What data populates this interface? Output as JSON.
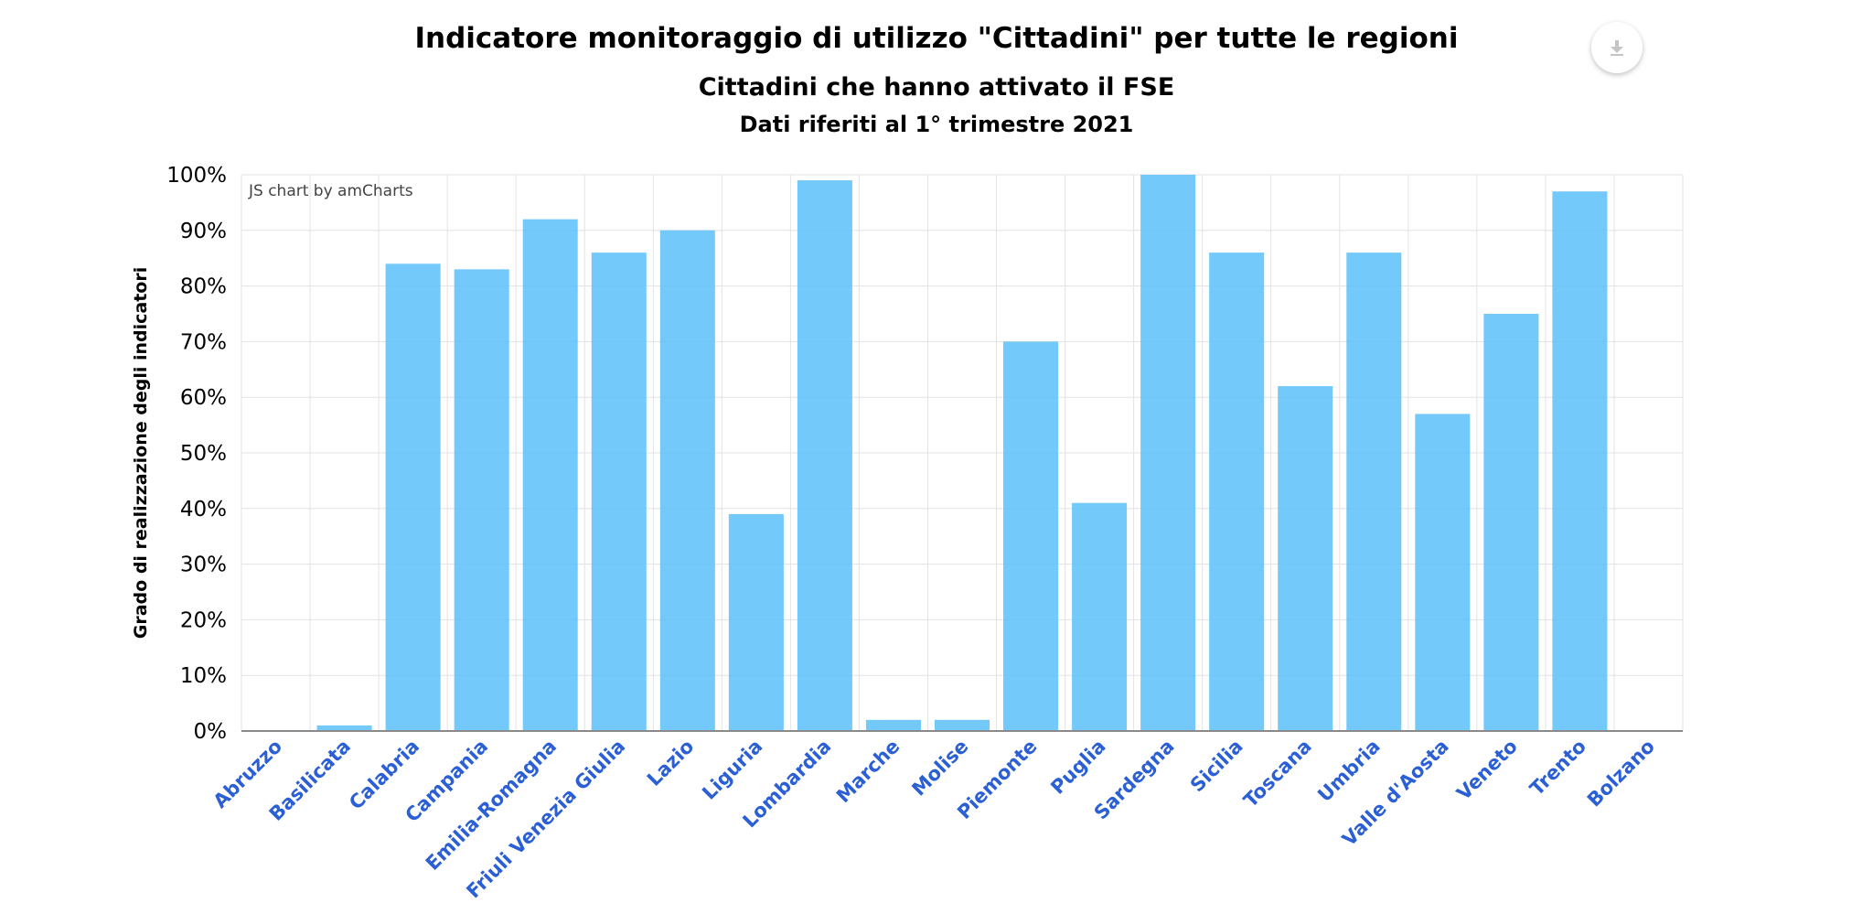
{
  "header": {
    "title": "Indicatore monitoraggio di utilizzo \"Cittadini\" per tutte le regioni",
    "subtitle": "Cittadini che hanno attivato il FSE",
    "period": "Dati riferiti al 1° trimestre 2021"
  },
  "toolbar": {
    "export_icon": "download-icon"
  },
  "credit": "JS chart by amCharts",
  "colors": {
    "bar": "#5bc0f8",
    "category_label": "#2b5fd6",
    "grid": "#e3e3e3",
    "axis": "#8a8a8a"
  },
  "chart_data": {
    "type": "bar",
    "title": "Indicatore monitoraggio di utilizzo \"Cittadini\" per tutte le regioni",
    "subtitle": "Cittadini che hanno attivato il FSE",
    "xlabel": "",
    "ylabel": "Grado di realizzazione degli indicatori",
    "ylim": [
      0,
      100
    ],
    "yticks": [
      "0%",
      "10%",
      "20%",
      "30%",
      "40%",
      "50%",
      "60%",
      "70%",
      "80%",
      "90%",
      "100%"
    ],
    "grid": true,
    "legend": "none",
    "categories": [
      "Abruzzo",
      "Basilicata",
      "Calabria",
      "Campania",
      "Emilia-Romagna",
      "Friuli Venezia Giulia",
      "Lazio",
      "Liguria",
      "Lombardia",
      "Marche",
      "Molise",
      "Piemonte",
      "Puglia",
      "Sardegna",
      "Sicilia",
      "Toscana",
      "Umbria",
      "Valle d'Aosta",
      "Veneto",
      "Trento",
      "Bolzano"
    ],
    "values": [
      0,
      1,
      84,
      83,
      92,
      86,
      90,
      39,
      99,
      2,
      2,
      70,
      41,
      100,
      86,
      62,
      86,
      57,
      75,
      97,
      0
    ]
  }
}
